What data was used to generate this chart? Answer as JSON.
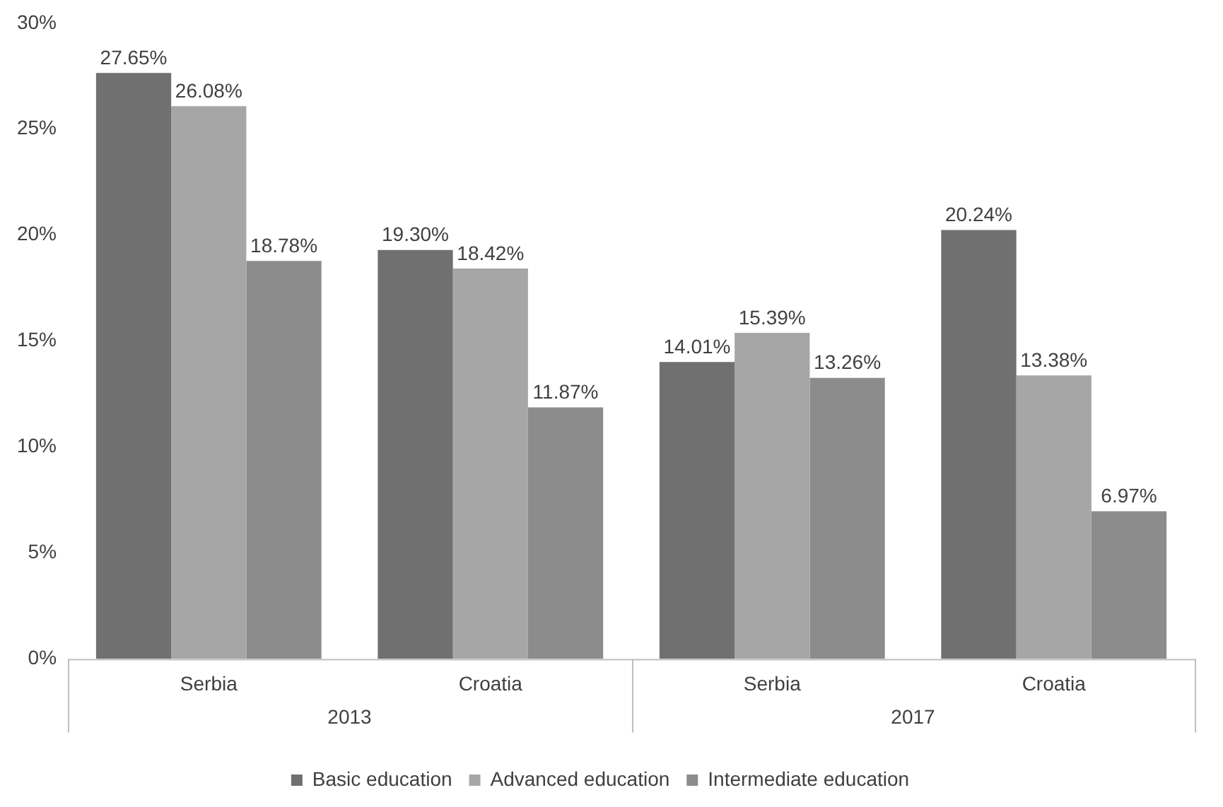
{
  "chart_data": {
    "type": "bar",
    "categories": [
      "Serbia",
      "Croatia",
      "Serbia",
      "Croatia"
    ],
    "series": [
      {
        "name": "Basic education",
        "color": "#707070",
        "values": [
          27.65,
          19.3,
          14.01,
          20.24
        ],
        "value_labels": [
          "27.65%",
          "19.30%",
          "14.01%",
          "20.24%"
        ]
      },
      {
        "name": "Advanced education",
        "color": "#a6a6a6",
        "values": [
          26.08,
          18.42,
          15.39,
          13.38
        ],
        "value_labels": [
          "26.08%",
          "18.42%",
          "15.39%",
          "13.38%"
        ]
      },
      {
        "name": "Intermediate education",
        "color": "#8c8c8c",
        "values": [
          18.78,
          11.87,
          13.26,
          6.97
        ],
        "value_labels": [
          "18.78%",
          "11.87%",
          "13.26%",
          "6.97%"
        ]
      }
    ],
    "ylim": [
      0,
      30
    ],
    "yticks": [
      {
        "value": 0,
        "label": "0%"
      },
      {
        "value": 5,
        "label": "5%"
      },
      {
        "value": 10,
        "label": "10%"
      },
      {
        "value": 15,
        "label": "15%"
      },
      {
        "value": 20,
        "label": "20%"
      },
      {
        "value": 25,
        "label": "25%"
      },
      {
        "value": 30,
        "label": "30%"
      }
    ],
    "annotations": [
      "2013",
      "2017"
    ],
    "grid": false,
    "legend": "bottom"
  }
}
